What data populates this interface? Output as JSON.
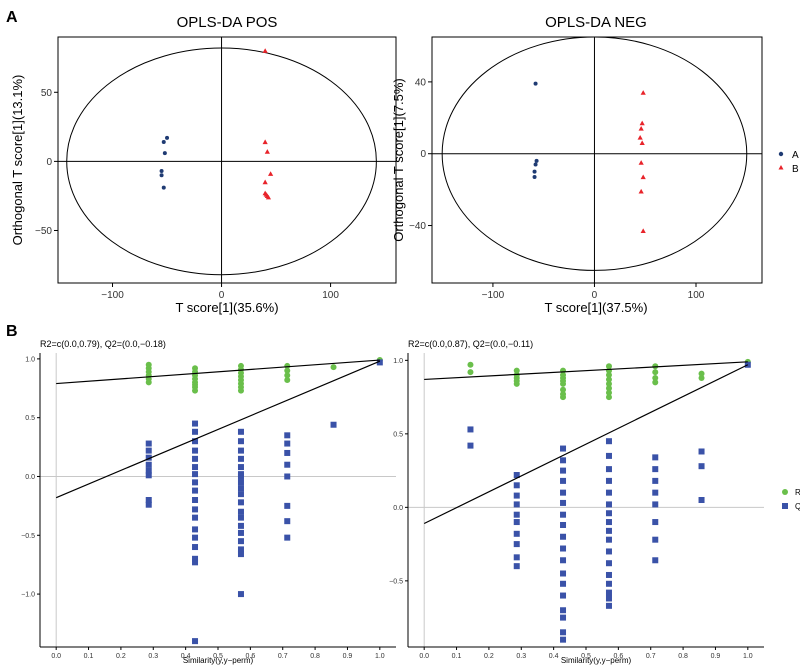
{
  "panel_labels": {
    "a": "A",
    "b": "B"
  },
  "legend_top": {
    "a": "A",
    "b": "B"
  },
  "legend_bottom": {
    "r2": "R",
    "q2": "Q"
  },
  "colors": {
    "group_a": "#1f3b73",
    "group_b": "#e8232a",
    "r2": "#6abf4b",
    "q2": "#3a52a8"
  },
  "chart_data": [
    {
      "type": "scatter",
      "title": "OPLS-DA POS",
      "xlabel": "T score[1](35.6%)",
      "ylabel": "Orthogonal T score[1](13.1%)",
      "xlim": [
        -150,
        160
      ],
      "ylim": [
        -88,
        90
      ],
      "xticks": [
        -100,
        0,
        100
      ],
      "yticks": [
        -50,
        0,
        50
      ],
      "ellipse": {
        "cx": 0,
        "cy": 0,
        "rx": 142,
        "ry": 82
      },
      "series": [
        {
          "name": "A",
          "x": [
            -50,
            -53,
            -52,
            -55,
            -55,
            -53
          ],
          "y": [
            17,
            14,
            6,
            -7,
            -10,
            -19
          ]
        },
        {
          "name": "B",
          "x": [
            40,
            40,
            42,
            45,
            40,
            40,
            41,
            42,
            43
          ],
          "y": [
            80,
            14,
            7,
            -9,
            -15,
            -23,
            -24,
            -25,
            -26
          ]
        }
      ]
    },
    {
      "type": "scatter",
      "title": "OPLS-DA NEG",
      "xlabel": "T score[1](37.5%)",
      "ylabel": "Orthogonal T score[1](7.5%)",
      "xlim": [
        -160,
        165
      ],
      "ylim": [
        -72,
        65
      ],
      "xticks": [
        -100,
        0,
        100
      ],
      "yticks": [
        -40,
        0,
        40
      ],
      "ellipse": {
        "cx": 0,
        "cy": 0,
        "rx": 150,
        "ry": 65
      },
      "series": [
        {
          "name": "A",
          "x": [
            -58,
            -57,
            -58,
            -59,
            -59
          ],
          "y": [
            39,
            -4,
            -6,
            -10,
            -13
          ]
        },
        {
          "name": "B",
          "x": [
            48,
            47,
            46,
            45,
            47,
            46,
            48,
            46,
            48
          ],
          "y": [
            34,
            17,
            14,
            9,
            6,
            -5,
            -13,
            -21,
            -43
          ]
        }
      ]
    },
    {
      "type": "scatter",
      "title": "R2=c(0.0,0.79), Q2=(0.0,−0.18)",
      "xlabel": "Similarity(y,y−perm)",
      "ylabel": "",
      "xlim": [
        -0.05,
        1.05
      ],
      "ylim": [
        -1.45,
        1.05
      ],
      "xticks": [
        0.0,
        0.1,
        0.2,
        0.3,
        0.4,
        0.5,
        0.6,
        0.7,
        0.8,
        0.9,
        1.0
      ],
      "yticks": [
        -1.0,
        -0.5,
        0.0,
        0.5,
        1.0
      ],
      "regression_lines": [
        {
          "name": "R2",
          "intercept": 0.79,
          "slope": 0.2
        },
        {
          "name": "Q2",
          "intercept": -0.18,
          "slope": 1.16
        }
      ],
      "series": [
        {
          "name": "R2",
          "x": [
            0.286,
            0.286,
            0.286,
            0.286,
            0.286,
            0.286,
            0.429,
            0.429,
            0.429,
            0.429,
            0.429,
            0.429,
            0.429,
            0.429,
            0.571,
            0.571,
            0.571,
            0.571,
            0.571,
            0.571,
            0.571,
            0.571,
            0.714,
            0.714,
            0.714,
            0.714,
            0.857,
            1.0
          ],
          "y": [
            0.95,
            0.92,
            0.89,
            0.86,
            0.83,
            0.8,
            0.92,
            0.89,
            0.86,
            0.83,
            0.8,
            0.78,
            0.76,
            0.73,
            0.94,
            0.91,
            0.88,
            0.85,
            0.82,
            0.79,
            0.76,
            0.73,
            0.94,
            0.9,
            0.86,
            0.82,
            0.93,
            0.99
          ]
        },
        {
          "name": "Q2",
          "x": [
            0.286,
            0.286,
            0.286,
            0.286,
            0.286,
            0.286,
            0.286,
            0.286,
            0.429,
            0.429,
            0.429,
            0.429,
            0.429,
            0.429,
            0.429,
            0.429,
            0.429,
            0.429,
            0.429,
            0.429,
            0.429,
            0.429,
            0.429,
            0.429,
            0.429,
            0.429,
            0.571,
            0.571,
            0.571,
            0.571,
            0.571,
            0.571,
            0.571,
            0.571,
            0.571,
            0.571,
            0.571,
            0.571,
            0.571,
            0.571,
            0.571,
            0.571,
            0.571,
            0.571,
            0.571,
            0.714,
            0.714,
            0.714,
            0.714,
            0.714,
            0.714,
            0.714,
            0.714,
            0.857,
            1.0
          ],
          "y": [
            0.28,
            0.22,
            0.16,
            0.1,
            0.05,
            0.01,
            -0.2,
            -0.24,
            0.45,
            0.38,
            0.3,
            0.22,
            0.15,
            0.08,
            0.02,
            -0.05,
            -0.12,
            -0.2,
            -0.28,
            -0.35,
            -0.45,
            -0.52,
            -0.6,
            -0.7,
            -0.73,
            -1.4,
            0.38,
            0.3,
            0.22,
            0.15,
            0.08,
            0.02,
            -0.05,
            -0.1,
            -0.15,
            -0.22,
            -0.3,
            -0.35,
            -0.42,
            -0.48,
            -0.55,
            -0.62,
            -0.66,
            -1.0,
            0.0,
            0.35,
            0.28,
            0.2,
            0.1,
            0.0,
            -0.25,
            -0.38,
            -0.52,
            0.44,
            0.97
          ]
        }
      ]
    },
    {
      "type": "scatter",
      "title": "R2=c(0.0,0.87), Q2=(0.0,−0.11)",
      "xlabel": "Similarity(y,y−perm)",
      "ylabel": "",
      "xlim": [
        -0.05,
        1.05
      ],
      "ylim": [
        -0.95,
        1.05
      ],
      "xticks": [
        0.0,
        0.1,
        0.2,
        0.3,
        0.4,
        0.5,
        0.6,
        0.7,
        0.8,
        0.9,
        1.0
      ],
      "yticks": [
        -0.5,
        0.0,
        0.5,
        1.0
      ],
      "regression_lines": [
        {
          "name": "R2",
          "intercept": 0.87,
          "slope": 0.12
        },
        {
          "name": "Q2",
          "intercept": -0.11,
          "slope": 1.08
        }
      ],
      "series": [
        {
          "name": "R2",
          "x": [
            0.143,
            0.143,
            0.286,
            0.286,
            0.286,
            0.286,
            0.286,
            0.429,
            0.429,
            0.429,
            0.429,
            0.429,
            0.429,
            0.429,
            0.429,
            0.571,
            0.571,
            0.571,
            0.571,
            0.571,
            0.571,
            0.571,
            0.571,
            0.714,
            0.714,
            0.714,
            0.714,
            0.857,
            0.857,
            1.0
          ],
          "y": [
            0.97,
            0.92,
            0.93,
            0.9,
            0.88,
            0.86,
            0.84,
            0.93,
            0.9,
            0.88,
            0.86,
            0.84,
            0.8,
            0.77,
            0.75,
            0.96,
            0.93,
            0.9,
            0.87,
            0.84,
            0.81,
            0.78,
            0.75,
            0.96,
            0.92,
            0.88,
            0.85,
            0.91,
            0.88,
            0.99
          ]
        },
        {
          "name": "Q2",
          "x": [
            0.143,
            0.143,
            0.286,
            0.286,
            0.286,
            0.286,
            0.286,
            0.286,
            0.286,
            0.286,
            0.286,
            0.286,
            0.429,
            0.429,
            0.429,
            0.429,
            0.429,
            0.429,
            0.429,
            0.429,
            0.429,
            0.429,
            0.429,
            0.429,
            0.429,
            0.429,
            0.429,
            0.429,
            0.429,
            0.429,
            0.571,
            0.571,
            0.571,
            0.571,
            0.571,
            0.571,
            0.571,
            0.571,
            0.571,
            0.571,
            0.571,
            0.571,
            0.571,
            0.571,
            0.571,
            0.571,
            0.571,
            0.714,
            0.714,
            0.714,
            0.714,
            0.714,
            0.714,
            0.714,
            0.714,
            0.857,
            0.857,
            0.857,
            1.0
          ],
          "y": [
            0.53,
            0.42,
            0.22,
            0.15,
            0.08,
            0.02,
            -0.05,
            -0.1,
            -0.18,
            -0.25,
            -0.34,
            -0.4,
            0.4,
            0.32,
            0.25,
            0.18,
            0.1,
            0.03,
            -0.05,
            -0.12,
            -0.2,
            -0.28,
            -0.36,
            -0.45,
            -0.52,
            -0.6,
            -0.7,
            -0.75,
            -0.85,
            -0.9,
            0.45,
            0.35,
            0.26,
            0.18,
            0.1,
            0.02,
            -0.04,
            -0.1,
            -0.16,
            -0.22,
            -0.3,
            -0.38,
            -0.46,
            -0.52,
            -0.58,
            -0.62,
            -0.67,
            0.34,
            0.26,
            0.18,
            0.1,
            0.02,
            -0.1,
            -0.22,
            -0.36,
            0.38,
            0.28,
            0.05,
            0.97
          ]
        }
      ]
    }
  ]
}
